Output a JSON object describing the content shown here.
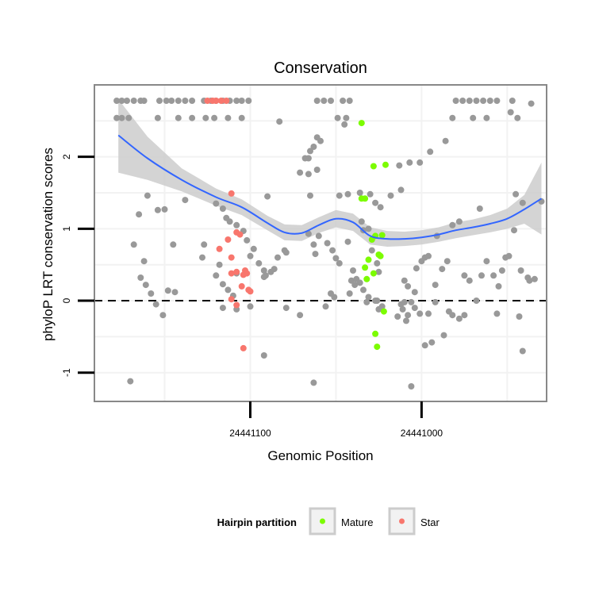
{
  "chart_data": {
    "type": "scatter",
    "title": "Conservation",
    "xlabel": "Genomic Position",
    "ylabel": "phyloP LRT conservation scores",
    "x_axis_reversed": true,
    "xlim": [
      24440927,
      24441191
    ],
    "ylim": [
      -1.4,
      3.0
    ],
    "x_ticks": [
      24441100,
      24441000
    ],
    "x_tick_labels": [
      "24441100",
      "24441000"
    ],
    "y_ticks": [
      -1,
      0,
      1,
      2
    ],
    "y_tick_labels": [
      "-1",
      "0",
      "1",
      "2"
    ],
    "grid": true,
    "reference_line": {
      "y": 0,
      "style": "dashed"
    },
    "colors": {
      "other": "#999999",
      "Mature": "#7cfc00",
      "Star": "#f8766d",
      "smooth": "#3366ff",
      "ribbon": "#cccccc",
      "panel_border": "#888888",
      "grid": "#f2f2f2"
    },
    "legend": {
      "title": "Hairpin partition",
      "position": "bottom",
      "entries": [
        "Mature",
        "Star"
      ]
    },
    "series": [
      {
        "name": "Other",
        "points": [
          [
            24441178,
            2.78
          ],
          [
            24441175,
            2.78
          ],
          [
            24441172,
            2.78
          ],
          [
            24441168,
            2.78
          ],
          [
            24441164,
            2.78
          ],
          [
            24441162,
            2.78
          ],
          [
            24441153,
            2.78
          ],
          [
            24441149,
            2.78
          ],
          [
            24441146,
            2.78
          ],
          [
            24441142,
            2.78
          ],
          [
            24441138,
            2.78
          ],
          [
            24441134,
            2.78
          ],
          [
            24441127,
            2.78
          ],
          [
            24441123,
            2.78
          ],
          [
            24441120,
            2.78
          ],
          [
            24441116,
            2.78
          ],
          [
            24441112,
            2.78
          ],
          [
            24441108,
            2.78
          ],
          [
            24441105,
            2.78
          ],
          [
            24441101,
            2.78
          ],
          [
            24441178,
            2.54
          ],
          [
            24441175,
            2.54
          ],
          [
            24441171,
            2.54
          ],
          [
            24441154,
            2.54
          ],
          [
            24441142,
            2.54
          ],
          [
            24441134,
            2.54
          ],
          [
            24441126,
            2.54
          ],
          [
            24441121,
            2.54
          ],
          [
            24441113,
            2.54
          ],
          [
            24441105,
            2.54
          ],
          [
            24441061,
            2.78
          ],
          [
            24441057,
            2.78
          ],
          [
            24441053,
            2.78
          ],
          [
            24441046,
            2.78
          ],
          [
            24441042,
            2.78
          ],
          [
            24441049,
            2.54
          ],
          [
            24441044,
            2.54
          ],
          [
            24440980,
            2.78
          ],
          [
            24440976,
            2.78
          ],
          [
            24440972,
            2.78
          ],
          [
            24440968,
            2.78
          ],
          [
            24440964,
            2.78
          ],
          [
            24440960,
            2.78
          ],
          [
            24440956,
            2.78
          ],
          [
            24440947,
            2.78
          ],
          [
            24440936,
            2.74
          ],
          [
            24440982,
            2.54
          ],
          [
            24440970,
            2.54
          ],
          [
            24440962,
            2.54
          ],
          [
            24440944,
            2.54
          ],
          [
            24440948,
            2.62
          ],
          [
            24441083,
            2.49
          ],
          [
            24441045,
            2.45
          ],
          [
            24441061,
            2.27
          ],
          [
            24441059,
            2.22
          ],
          [
            24441063,
            2.14
          ],
          [
            24441065,
            2.08
          ],
          [
            24441066,
            1.98
          ],
          [
            24441068,
            1.98
          ],
          [
            24441071,
            1.78
          ],
          [
            24441061,
            1.82
          ],
          [
            24441066,
            1.76
          ],
          [
            24440986,
            2.22
          ],
          [
            24440995,
            2.07
          ],
          [
            24441001,
            1.92
          ],
          [
            24441007,
            1.92
          ],
          [
            24441013,
            1.88
          ],
          [
            24441012,
            1.54
          ],
          [
            24441018,
            1.46
          ],
          [
            24441160,
            1.46
          ],
          [
            24441150,
            1.27
          ],
          [
            24441154,
            1.26
          ],
          [
            24441165,
            1.2
          ],
          [
            24441138,
            1.4
          ],
          [
            24441090,
            1.45
          ],
          [
            24441065,
            1.46
          ],
          [
            24441048,
            1.46
          ],
          [
            24441043,
            1.48
          ],
          [
            24441036,
            1.5
          ],
          [
            24441030,
            1.48
          ],
          [
            24441027,
            1.36
          ],
          [
            24441024,
            1.3
          ],
          [
            24440966,
            1.28
          ],
          [
            24440945,
            1.48
          ],
          [
            24440941,
            1.36
          ],
          [
            24440930,
            1.38
          ],
          [
            24441120,
            1.35
          ],
          [
            24441116,
            1.28
          ],
          [
            24441114,
            1.15
          ],
          [
            24441112,
            1.1
          ],
          [
            24441108,
            1.05
          ],
          [
            24441104,
            0.97
          ],
          [
            24441102,
            0.84
          ],
          [
            24441098,
            0.72
          ],
          [
            24441100,
            0.62
          ],
          [
            24441095,
            0.52
          ],
          [
            24441092,
            0.42
          ],
          [
            24441091,
            0.35
          ],
          [
            24441088,
            0.4
          ],
          [
            24441086,
            0.44
          ],
          [
            24441084,
            0.6
          ],
          [
            24441080,
            0.7
          ],
          [
            24441079,
            0.67
          ],
          [
            24441066,
            0.93
          ],
          [
            24441063,
            0.78
          ],
          [
            24441062,
            0.65
          ],
          [
            24441060,
            0.9
          ],
          [
            24441055,
            0.8
          ],
          [
            24441052,
            0.7
          ],
          [
            24441050,
            0.59
          ],
          [
            24441048,
            0.52
          ],
          [
            24441043,
            0.82
          ],
          [
            24441040,
            0.42
          ],
          [
            24441035,
            1.1
          ],
          [
            24441034,
            0.98
          ],
          [
            24441031,
            1.0
          ],
          [
            24441029,
            0.7
          ],
          [
            24441026,
            0.52
          ],
          [
            24441025,
            0.4
          ],
          [
            24441168,
            0.78
          ],
          [
            24441162,
            0.55
          ],
          [
            24441145,
            0.78
          ],
          [
            24441127,
            0.78
          ],
          [
            24441128,
            0.6
          ],
          [
            24441118,
            0.5
          ],
          [
            24441108,
            0.38
          ],
          [
            24441092,
            0.33
          ],
          [
            24441164,
            0.32
          ],
          [
            24441161,
            0.22
          ],
          [
            24441158,
            0.1
          ],
          [
            24441148,
            0.14
          ],
          [
            24441144,
            0.12
          ],
          [
            24441120,
            0.35
          ],
          [
            24441116,
            0.23
          ],
          [
            24441113,
            0.15
          ],
          [
            24441110,
            0.07
          ],
          [
            24441053,
            0.1
          ],
          [
            24441051,
            0.05
          ],
          [
            24441042,
            0.1
          ],
          [
            24441041,
            0.28
          ],
          [
            24441038,
            0.3
          ],
          [
            24441034,
            0.15
          ],
          [
            24441031,
            0.05
          ],
          [
            24441026,
            0.0
          ],
          [
            24441027,
            0.0
          ],
          [
            24441032,
            -0.02
          ],
          [
            24441036,
            0.25
          ],
          [
            24441039,
            0.22
          ],
          [
            24441155,
            -0.05
          ],
          [
            24441151,
            -0.2
          ],
          [
            24441116,
            -0.1
          ],
          [
            24441108,
            -0.12
          ],
          [
            24441100,
            -0.08
          ],
          [
            24441079,
            -0.1
          ],
          [
            24441071,
            -0.2
          ],
          [
            24441056,
            -0.08
          ],
          [
            24441025,
            -0.12
          ],
          [
            24441023,
            -0.08
          ],
          [
            24441010,
            0.28
          ],
          [
            24441008,
            0.2
          ],
          [
            24441004,
            0.12
          ],
          [
            24441006,
            -0.02
          ],
          [
            24441003,
            0.45
          ],
          [
            24441000,
            0.55
          ],
          [
            24440998,
            0.6
          ],
          [
            24440996,
            0.62
          ],
          [
            24440992,
            0.22
          ],
          [
            24440991,
            0.9
          ],
          [
            24440988,
            0.44
          ],
          [
            24440985,
            0.55
          ],
          [
            24440982,
            1.05
          ],
          [
            24440978,
            1.1
          ],
          [
            24440975,
            0.35
          ],
          [
            24440972,
            0.28
          ],
          [
            24440968,
            0.0
          ],
          [
            24440965,
            0.35
          ],
          [
            24440962,
            0.55
          ],
          [
            24440958,
            0.35
          ],
          [
            24440955,
            0.2
          ],
          [
            24440953,
            0.42
          ],
          [
            24440951,
            0.6
          ],
          [
            24440949,
            0.62
          ],
          [
            24440946,
            0.98
          ],
          [
            24440942,
            0.42
          ],
          [
            24440938,
            0.32
          ],
          [
            24440937,
            0.28
          ],
          [
            24440934,
            0.3
          ],
          [
            24441010,
            -0.02
          ],
          [
            24441012,
            -0.05
          ],
          [
            24441011,
            -0.12
          ],
          [
            24441008,
            -0.2
          ],
          [
            24441009,
            -0.28
          ],
          [
            24441014,
            -0.22
          ],
          [
            24441004,
            -0.1
          ],
          [
            24441001,
            -0.18
          ],
          [
            24440996,
            -0.18
          ],
          [
            24440992,
            -0.02
          ],
          [
            24440984,
            -0.15
          ],
          [
            24440982,
            -0.2
          ],
          [
            24440978,
            -0.25
          ],
          [
            24440975,
            -0.2
          ],
          [
            24440956,
            -0.18
          ],
          [
            24440943,
            -0.22
          ],
          [
            24441170,
            -1.12
          ],
          [
            24441092,
            -0.76
          ],
          [
            24441063,
            -1.14
          ],
          [
            24441006,
            -1.19
          ],
          [
            24440998,
            -0.62
          ],
          [
            24440994,
            -0.58
          ],
          [
            24440987,
            -0.48
          ],
          [
            24440941,
            -0.7
          ]
        ]
      },
      {
        "name": "Mature",
        "points": [
          [
            24441035,
            2.47
          ],
          [
            24441028,
            1.87
          ],
          [
            24441021,
            1.89
          ],
          [
            24441035,
            1.42
          ],
          [
            24441033,
            1.42
          ],
          [
            24441027,
            0.9
          ],
          [
            24441023,
            0.91
          ],
          [
            24441029,
            0.85
          ],
          [
            24441031,
            0.57
          ],
          [
            24441025,
            0.64
          ],
          [
            24441024,
            0.62
          ],
          [
            24441033,
            0.46
          ],
          [
            24441032,
            0.3
          ],
          [
            24441028,
            0.38
          ],
          [
            24441022,
            -0.15
          ],
          [
            24441027,
            -0.46
          ],
          [
            24441026,
            -0.64
          ]
        ]
      },
      {
        "name": "Star",
        "points": [
          [
            24441125,
            2.78
          ],
          [
            24441122,
            2.78
          ],
          [
            24441120,
            2.78
          ],
          [
            24441117,
            2.78
          ],
          [
            24441114,
            2.78
          ],
          [
            24441111,
            1.49
          ],
          [
            24441108,
            0.95
          ],
          [
            24441106,
            0.92
          ],
          [
            24441111,
            0.6
          ],
          [
            24441118,
            0.72
          ],
          [
            24441113,
            0.85
          ],
          [
            24441103,
            0.42
          ],
          [
            24441102,
            0.38
          ],
          [
            24441104,
            0.36
          ],
          [
            24441108,
            0.4
          ],
          [
            24441111,
            0.38
          ],
          [
            24441105,
            0.2
          ],
          [
            24441101,
            0.15
          ],
          [
            24441100,
            0.13
          ],
          [
            24441111,
            0.02
          ],
          [
            24441108,
            -0.06
          ],
          [
            24441104,
            -0.66
          ]
        ]
      }
    ],
    "smooth": {
      "x": [
        24441177,
        24441160,
        24441140,
        24441120,
        24441105,
        24441090,
        24441080,
        24441070,
        24441060,
        24441050,
        24441040,
        24441030,
        24441020,
        24441010,
        24441000,
        24440990,
        24440980,
        24440970,
        24440960,
        24440950,
        24440940,
        24440930
      ],
      "y": [
        2.3,
        1.98,
        1.68,
        1.44,
        1.3,
        1.08,
        0.95,
        0.94,
        1.05,
        1.14,
        1.09,
        0.9,
        0.86,
        0.86,
        0.88,
        0.92,
        0.98,
        1.02,
        1.07,
        1.14,
        1.27,
        1.42
      ],
      "lower": [
        1.78,
        1.68,
        1.52,
        1.32,
        1.19,
        0.98,
        0.84,
        0.83,
        0.94,
        1.02,
        0.97,
        0.78,
        0.75,
        0.76,
        0.78,
        0.82,
        0.87,
        0.91,
        0.95,
        1.0,
        1.07,
        0.92
      ],
      "upper": [
        2.8,
        2.28,
        1.84,
        1.56,
        1.41,
        1.18,
        1.06,
        1.05,
        1.16,
        1.26,
        1.21,
        1.02,
        0.97,
        0.96,
        0.98,
        1.02,
        1.09,
        1.13,
        1.19,
        1.28,
        1.47,
        1.92
      ]
    }
  }
}
